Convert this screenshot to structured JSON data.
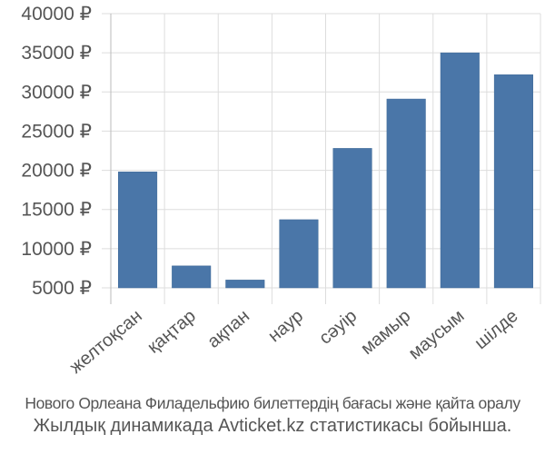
{
  "chart_data": {
    "type": "bar",
    "categories": [
      "желтоқсан",
      "қаңтар",
      "ақпан",
      "наур",
      "сәуір",
      "мамыр",
      "маусым",
      "шілде"
    ],
    "values": [
      19800,
      7800,
      6000,
      13700,
      22800,
      29100,
      35000,
      32200
    ],
    "y_ticks": [
      5000,
      10000,
      15000,
      20000,
      25000,
      30000,
      35000,
      40000
    ],
    "y_tick_labels": [
      "5000 ₽",
      "10000 ₽",
      "15000 ₽",
      "20000 ₽",
      "25000 ₽",
      "30000 ₽",
      "35000 ₽",
      "40000 ₽"
    ],
    "ylim": [
      5000,
      40000
    ],
    "bar_color": "#4a76a8",
    "grid": true,
    "grid_color": "#dddddd",
    "title": "",
    "xlabel": "",
    "ylabel": ""
  },
  "caption": {
    "line1": "Нового Орлеана Филадельфию билеттердің бағасы және қайта оралу",
    "line2": "Жылдық динамикада Avticket.kz статистикасы бойынша."
  }
}
